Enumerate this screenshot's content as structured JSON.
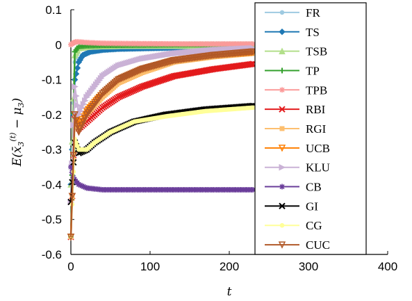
{
  "chart_data": {
    "type": "line",
    "title": "",
    "xlabel": "t",
    "ylabel": "E(x̄₃⁽ᵗ⁾ − μ₃)",
    "ylabel_parts": {
      "E": "E(",
      "x": "x̄",
      "sub": "3",
      "sup": "(t)",
      "minus": " − μ",
      "musub": "3",
      "close": ")"
    },
    "xlim": [
      0,
      400
    ],
    "ylim": [
      -0.6,
      0.1
    ],
    "xticks": [
      0,
      100,
      200,
      300,
      400
    ],
    "yticks": [
      -0.6,
      -0.5,
      -0.4,
      -0.3,
      -0.2,
      -0.1,
      0,
      0.1
    ],
    "xtick_labels": [
      "0",
      "100",
      "200",
      "300",
      "400"
    ],
    "ytick_labels": [
      "-0.6",
      "-0.5",
      "-0.4",
      "-0.3",
      "-0.2",
      "-0.1",
      "0",
      "0.1"
    ],
    "grid": false,
    "legend_position": "top-right",
    "series": [
      {
        "name": "FR",
        "color": "#9ecae1",
        "marker": "dot",
        "x": [
          0,
          5,
          10,
          20,
          40,
          80,
          150,
          230
        ],
        "y": [
          -0.4,
          -0.05,
          -0.01,
          -0.005,
          -0.002,
          -0.001,
          0,
          0
        ]
      },
      {
        "name": "TS",
        "color": "#1f78b4",
        "marker": "diamond",
        "x": [
          0,
          5,
          10,
          15,
          25,
          40,
          60,
          100,
          150,
          230
        ],
        "y": [
          -0.4,
          -0.1,
          -0.05,
          -0.03,
          -0.02,
          -0.015,
          -0.012,
          -0.01,
          -0.008,
          -0.007
        ]
      },
      {
        "name": "TSB",
        "color": "#b2df8a",
        "marker": "triangle-up",
        "x": [
          0,
          5,
          10,
          20,
          40,
          80,
          150,
          230
        ],
        "y": [
          -0.4,
          -0.03,
          -0.01,
          -0.006,
          -0.004,
          -0.003,
          -0.003,
          -0.003
        ]
      },
      {
        "name": "TP",
        "color": "#33a02c",
        "marker": "plus",
        "x": [
          0,
          5,
          10,
          20,
          40,
          80,
          150,
          230
        ],
        "y": [
          -0.55,
          -0.02,
          -0.005,
          -0.003,
          -0.002,
          -0.001,
          0,
          0
        ]
      },
      {
        "name": "TPB",
        "color": "#fb9a99",
        "marker": "star",
        "x": [
          0,
          3,
          6,
          10,
          20,
          40,
          80,
          150,
          230
        ],
        "y": [
          0.0,
          0.005,
          0.008,
          0.008,
          0.006,
          0.004,
          0.003,
          0.002,
          0.002
        ]
      },
      {
        "name": "RBI",
        "color": "#e31a1c",
        "marker": "x",
        "x": [
          0,
          5,
          10,
          20,
          40,
          60,
          90,
          130,
          180,
          230
        ],
        "y": [
          -0.55,
          -0.2,
          -0.24,
          -0.22,
          -0.18,
          -0.15,
          -0.12,
          -0.09,
          -0.07,
          -0.055
        ]
      },
      {
        "name": "RGI",
        "color": "#fdbf6f",
        "marker": "square",
        "x": [
          0,
          5,
          10,
          20,
          40,
          60,
          90,
          130,
          180,
          230
        ],
        "y": [
          -0.55,
          -0.22,
          -0.24,
          -0.2,
          -0.15,
          -0.11,
          -0.08,
          -0.05,
          -0.035,
          -0.025
        ]
      },
      {
        "name": "UCB",
        "color": "#ff7f00",
        "marker": "triangle-down",
        "x": [
          0,
          5,
          10,
          20,
          40,
          60,
          90,
          130,
          180,
          230
        ],
        "y": [
          -0.55,
          -0.2,
          -0.23,
          -0.19,
          -0.14,
          -0.1,
          -0.07,
          -0.045,
          -0.03,
          -0.022
        ]
      },
      {
        "name": "KLU",
        "color": "#cab2d6",
        "marker": "triangle-right",
        "x": [
          0,
          5,
          10,
          20,
          40,
          60,
          90,
          130,
          180,
          230
        ],
        "y": [
          -0.45,
          -0.12,
          -0.2,
          -0.15,
          -0.09,
          -0.06,
          -0.04,
          -0.025,
          -0.015,
          -0.01
        ]
      },
      {
        "name": "CB",
        "color": "#6a3d9a",
        "marker": "star",
        "x": [
          0,
          3,
          6,
          10,
          20,
          40,
          80,
          150,
          230
        ],
        "y": [
          -0.35,
          -0.38,
          -0.39,
          -0.4,
          -0.41,
          -0.415,
          -0.415,
          -0.415,
          -0.415
        ]
      },
      {
        "name": "GI",
        "color": "#000000",
        "marker": "x",
        "x": [
          0,
          5,
          10,
          20,
          30,
          50,
          80,
          120,
          170,
          230
        ],
        "y": [
          -0.45,
          -0.28,
          -0.31,
          -0.3,
          -0.28,
          -0.25,
          -0.22,
          -0.2,
          -0.185,
          -0.175
        ]
      },
      {
        "name": "CG",
        "color": "#ffff99",
        "marker": "dot",
        "x": [
          0,
          5,
          10,
          20,
          30,
          50,
          80,
          120,
          170,
          230
        ],
        "y": [
          -0.55,
          -0.27,
          -0.3,
          -0.3,
          -0.28,
          -0.25,
          -0.22,
          -0.205,
          -0.19,
          -0.18
        ]
      },
      {
        "name": "CUC",
        "color": "#b15928",
        "marker": "triangle-down",
        "x": [
          0,
          5,
          10,
          20,
          40,
          60,
          90,
          130,
          180,
          230
        ],
        "y": [
          -0.55,
          -0.2,
          -0.25,
          -0.2,
          -0.14,
          -0.1,
          -0.07,
          -0.045,
          -0.03,
          -0.02
        ]
      }
    ]
  }
}
